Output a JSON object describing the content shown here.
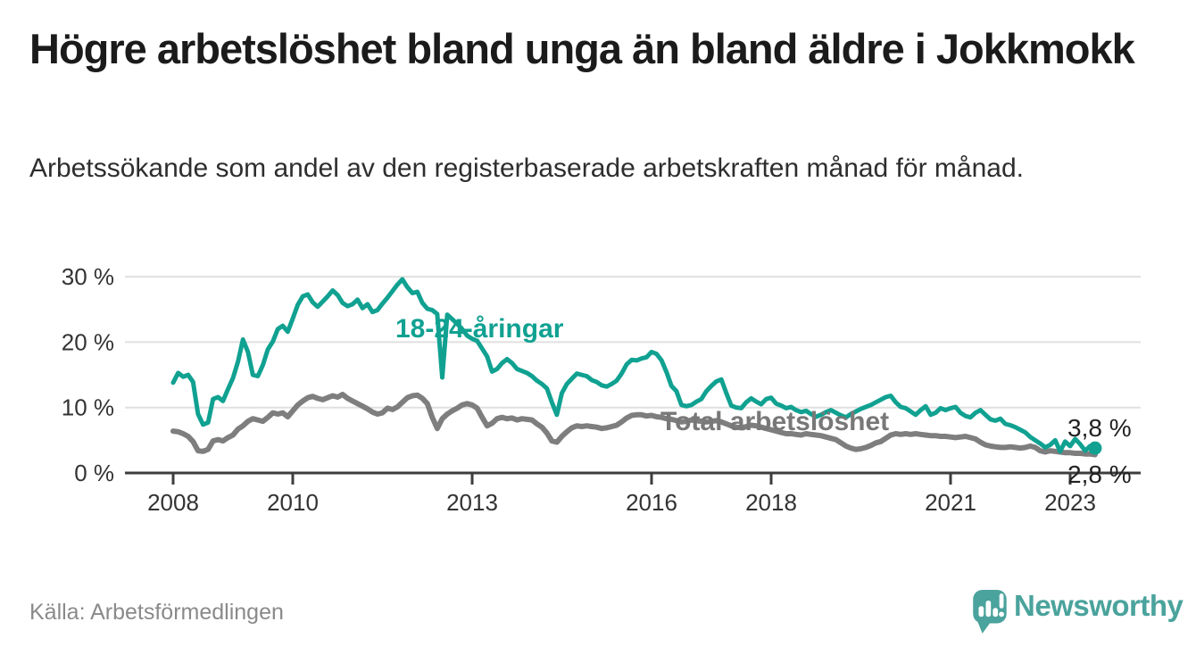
{
  "header": {
    "title": "Högre arbetslöshet bland unga än bland äldre i Jokkmokk",
    "subtitle": "Arbetssökande som andel av den registerbaserade arbetskraften månad för månad."
  },
  "source": {
    "label": "Källa: Arbetsförmedlingen"
  },
  "branding": {
    "wordmark": "Newsworthy",
    "logo_icon": "chart-speech-bubble-icon",
    "brand_color": "#4aa39c"
  },
  "chart_data": {
    "type": "line",
    "unit": "%",
    "frequency": "monthly",
    "start": "2008-01",
    "end": "2023-06",
    "grid": "horizontal",
    "legend_position": "inline-labels",
    "ylim": [
      0,
      32
    ],
    "x_ticks": [
      2008,
      2010,
      2013,
      2016,
      2018,
      2021,
      2023
    ],
    "y_ticks": [
      {
        "value": 0,
        "label": "0 %"
      },
      {
        "value": 10,
        "label": "10 %"
      },
      {
        "value": 20,
        "label": "20 %"
      },
      {
        "value": 30,
        "label": "30 %"
      }
    ],
    "colors": {
      "young_series": "#10a191",
      "total_series": "#7e7e7e",
      "gridline": "#e0e0e0",
      "axis": "#3d3d3d"
    },
    "series": [
      {
        "name": "18-24-åringar",
        "color": "#10a191",
        "end_value": 3.8,
        "end_label": "3,8 %",
        "end_dot": true,
        "values": [
          13.8,
          15.3,
          14.7,
          15.0,
          13.9,
          9.0,
          7.4,
          7.7,
          11.3,
          11.6,
          11.0,
          12.8,
          14.5,
          17.0,
          20.4,
          18.5,
          15.0,
          14.8,
          16.5,
          18.9,
          20.1,
          22.0,
          22.5,
          21.6,
          23.6,
          25.7,
          27.0,
          27.3,
          26.1,
          25.4,
          26.2,
          27.0,
          27.9,
          27.2,
          26.0,
          25.5,
          25.8,
          26.5,
          25.2,
          25.8,
          24.6,
          24.9,
          25.9,
          26.8,
          27.8,
          28.8,
          29.6,
          28.4,
          27.5,
          27.7,
          26.0,
          25.1,
          24.9,
          24.3,
          14.6,
          24.2,
          23.5,
          22.8,
          22.0,
          21.0,
          20.5,
          20.2,
          19.0,
          17.8,
          15.5,
          15.9,
          16.8,
          17.4,
          16.8,
          15.9,
          15.6,
          15.3,
          14.8,
          14.1,
          13.6,
          12.9,
          10.8,
          8.9,
          12.2,
          13.6,
          14.4,
          15.2,
          15.0,
          14.8,
          14.2,
          13.9,
          13.4,
          13.2,
          13.6,
          14.1,
          15.2,
          16.6,
          17.3,
          17.2,
          17.5,
          17.7,
          18.5,
          18.2,
          17.2,
          15.4,
          13.3,
          12.5,
          10.4,
          10.2,
          10.4,
          10.9,
          11.3,
          12.5,
          13.3,
          14.0,
          14.3,
          12.2,
          10.3,
          10.0,
          9.9,
          10.8,
          11.4,
          10.9,
          10.5,
          11.3,
          11.5,
          10.6,
          10.3,
          9.9,
          10.1,
          9.6,
          9.3,
          9.5,
          9.0,
          8.6,
          8.9,
          9.3,
          9.6,
          9.2,
          8.8,
          8.5,
          9.0,
          9.4,
          9.8,
          10.1,
          10.4,
          10.8,
          11.2,
          11.6,
          11.8,
          10.8,
          10.1,
          9.9,
          9.4,
          8.9,
          9.6,
          10.2,
          8.9,
          9.2,
          9.9,
          9.6,
          9.9,
          10.1,
          9.2,
          8.7,
          8.5,
          9.2,
          9.6,
          8.9,
          8.2,
          8.0,
          8.3,
          7.5,
          7.3,
          7.0,
          6.6,
          6.2,
          5.5,
          5.0,
          4.5,
          3.9,
          4.3,
          5.0,
          3.3,
          4.8,
          4.1,
          5.2,
          4.4,
          3.4,
          4.1,
          3.8
        ]
      },
      {
        "name": "Total arbetslöshet",
        "color": "#7e7e7e",
        "end_value": 2.8,
        "end_label": "2,8 %",
        "end_dot": false,
        "values": [
          6.4,
          6.3,
          6.0,
          5.6,
          4.8,
          3.4,
          3.3,
          3.6,
          4.9,
          5.1,
          4.9,
          5.4,
          5.8,
          6.7,
          7.2,
          7.9,
          8.3,
          8.1,
          7.9,
          8.5,
          9.2,
          9.0,
          9.2,
          8.6,
          9.5,
          10.4,
          11.0,
          11.5,
          11.7,
          11.4,
          11.2,
          11.5,
          11.8,
          11.6,
          12.0,
          11.4,
          11.0,
          10.6,
          10.2,
          9.8,
          9.3,
          9.0,
          9.2,
          9.9,
          9.7,
          10.1,
          10.8,
          11.5,
          11.8,
          11.9,
          11.4,
          10.6,
          8.5,
          6.8,
          8.3,
          9.0,
          9.5,
          9.9,
          10.4,
          10.6,
          10.4,
          9.9,
          8.5,
          7.2,
          7.6,
          8.3,
          8.5,
          8.3,
          8.4,
          8.1,
          8.3,
          8.2,
          8.1,
          7.5,
          7.0,
          6.1,
          4.9,
          4.7,
          5.6,
          6.3,
          6.9,
          7.2,
          7.1,
          7.2,
          7.1,
          7.0,
          6.8,
          6.9,
          7.1,
          7.3,
          7.8,
          8.4,
          8.8,
          8.9,
          8.9,
          8.7,
          8.8,
          8.6,
          8.5,
          8.3,
          8.2,
          8.0,
          7.8,
          7.9,
          8.1,
          8.0,
          7.9,
          7.8,
          7.9,
          8.0,
          7.8,
          7.5,
          7.2,
          7.0,
          6.9,
          7.1,
          7.3,
          7.2,
          7.0,
          6.8,
          6.6,
          6.4,
          6.2,
          6.0,
          6.0,
          5.9,
          5.8,
          6.0,
          5.9,
          5.8,
          5.7,
          5.5,
          5.3,
          5.1,
          4.6,
          4.1,
          3.8,
          3.6,
          3.7,
          3.9,
          4.2,
          4.6,
          4.8,
          5.3,
          5.8,
          6.0,
          5.9,
          6.0,
          5.9,
          6.0,
          5.9,
          5.8,
          5.7,
          5.7,
          5.6,
          5.6,
          5.5,
          5.4,
          5.5,
          5.6,
          5.4,
          5.2,
          4.7,
          4.3,
          4.1,
          4.0,
          3.9,
          3.9,
          4.0,
          3.9,
          3.8,
          3.9,
          4.1,
          3.9,
          3.4,
          3.2,
          3.4,
          3.3,
          3.2,
          3.1,
          3.1,
          3.0,
          3.0,
          2.9,
          2.9,
          2.8
        ]
      }
    ]
  }
}
